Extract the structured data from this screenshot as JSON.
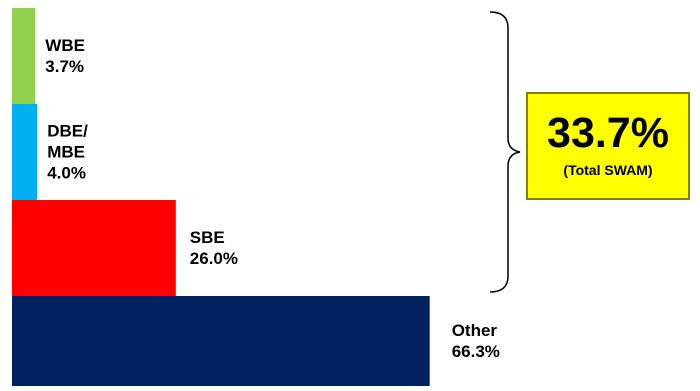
{
  "chart_data": {
    "type": "bar",
    "orientation": "horizontal-stacked-tiers",
    "categories": [
      "WBE",
      "DBE/\nMBE",
      "SBE",
      "Other"
    ],
    "values": [
      3.7,
      4.0,
      26.0,
      66.3
    ],
    "value_labels": [
      "3.7%",
      "4.0%",
      "26.0%",
      "66.3%"
    ],
    "colors": [
      "#92d050",
      "#00b0f0",
      "#ff0000",
      "#002060"
    ],
    "xlim": [
      0,
      100
    ],
    "grid": false,
    "legend": "none",
    "callout": {
      "value": "33.7%",
      "caption": "(Total SWAM)",
      "bracket_covers": [
        "WBE",
        "DBE/\nMBE",
        "SBE"
      ],
      "background": "#ffff00"
    }
  }
}
